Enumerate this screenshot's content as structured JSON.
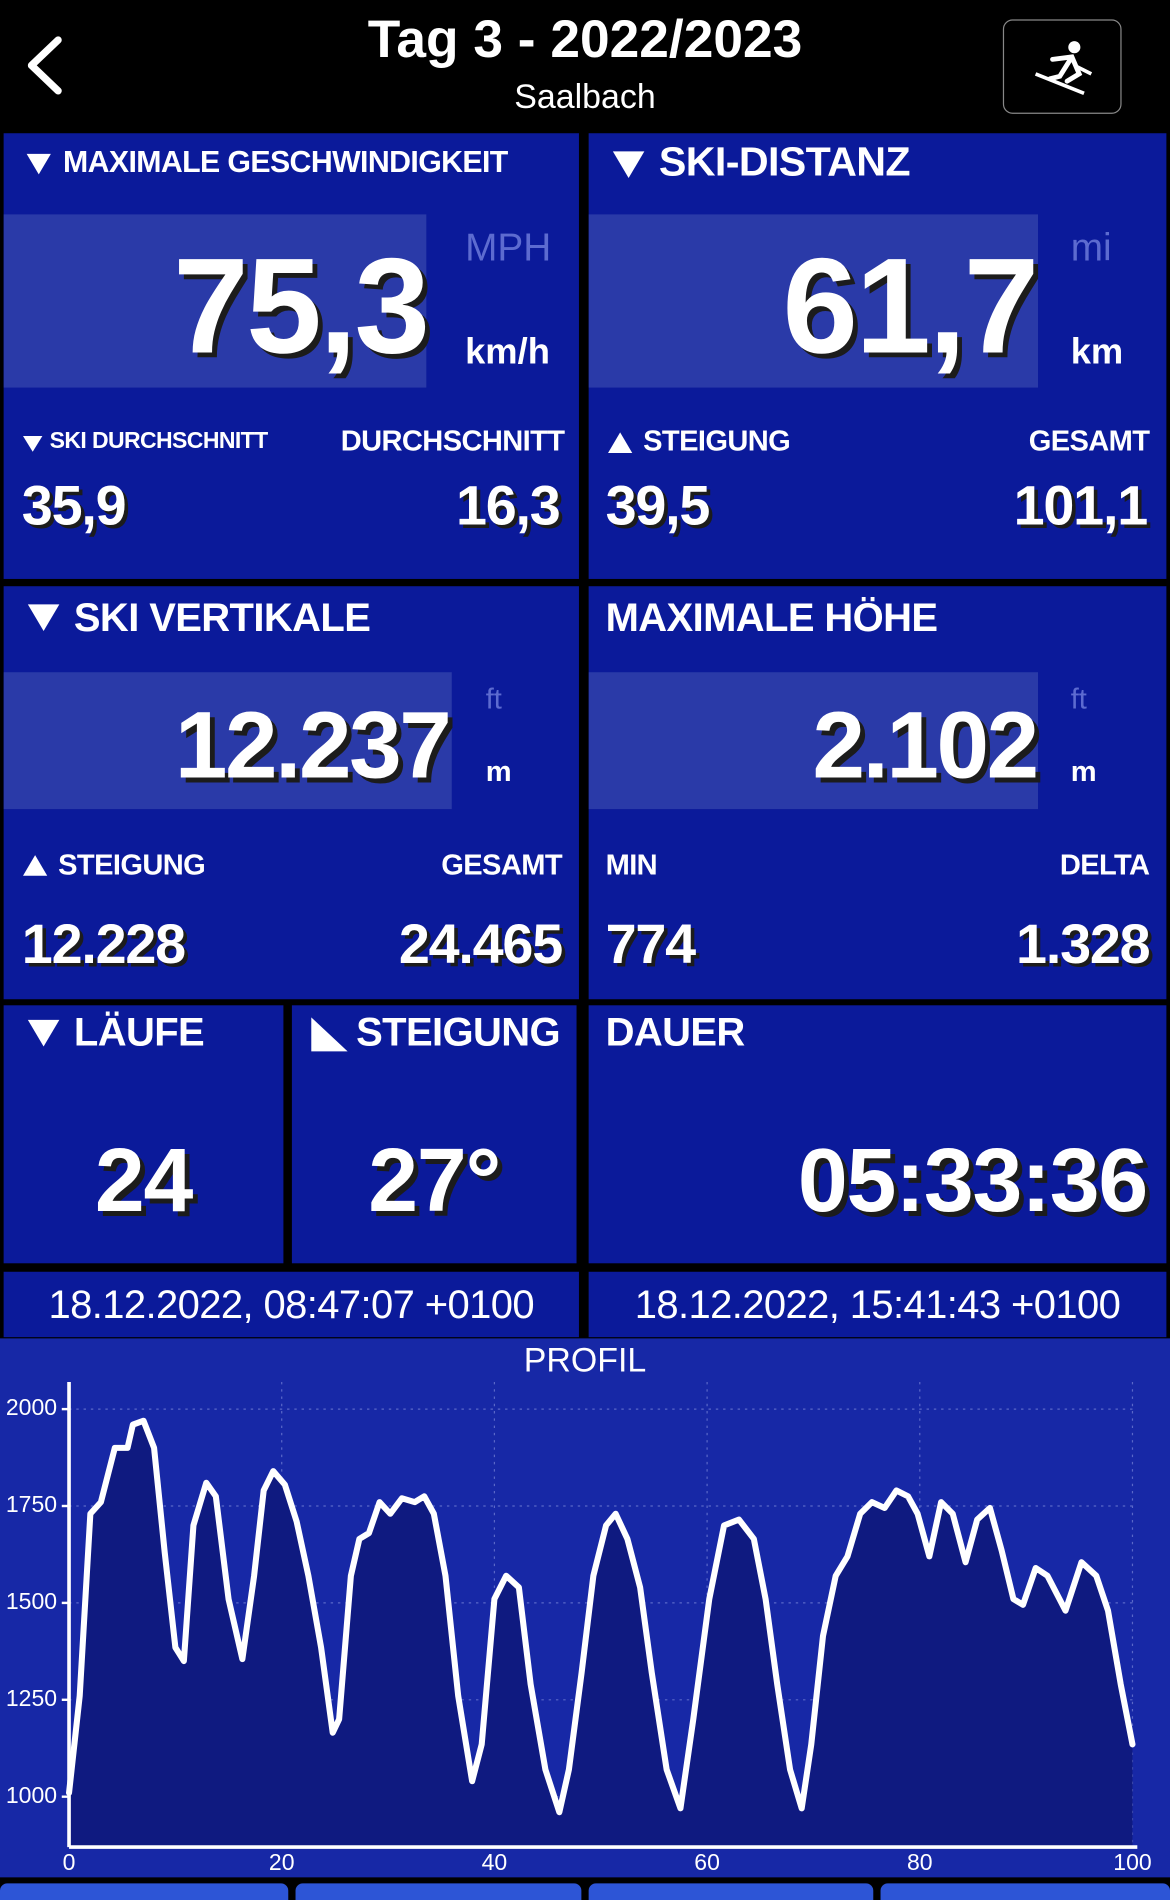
{
  "header": {
    "title": "Tag 3 - 2022/2023",
    "subtitle": "Saalbach"
  },
  "tiles": [
    {
      "label": "MAXIMALE GESCHWINDIGKEIT",
      "value": "75,3",
      "unit_alt": "MPH",
      "unit": "km/h",
      "stat_left_label": "SKI DURCHSCHNITT",
      "stat_right_label": "DURCHSCHNITT",
      "stat_left": "35,9",
      "stat_right": "16,3"
    },
    {
      "label": "SKI-DISTANZ",
      "value": "61,7",
      "unit_alt": "mi",
      "unit": "km",
      "stat_left_label": "STEIGUNG",
      "stat_right_label": "GESAMT",
      "stat_left": "39,5",
      "stat_right": "101,1"
    },
    {
      "label": "SKI VERTIKALE",
      "value": "12.237",
      "unit_alt": "ft",
      "unit": "m",
      "stat_left_label": "STEIGUNG",
      "stat_right_label": "GESAMT",
      "stat_left": "12.228",
      "stat_right": "24.465"
    },
    {
      "label": "MAXIMALE HÖHE",
      "value": "2.102",
      "unit_alt": "ft",
      "unit": "m",
      "stat_left_label": "MIN",
      "stat_right_label": "DELTA",
      "stat_left": "774",
      "stat_right": "1.328"
    }
  ],
  "counters": [
    {
      "label": "LÄUFE",
      "value": "24"
    },
    {
      "label": "STEIGUNG",
      "value": "27°"
    },
    {
      "label": "DAUER",
      "value": "05:33:36"
    }
  ],
  "times": {
    "start": "18.12.2022, 08:47:07 +0100",
    "end": "18.12.2022, 15:41:43 +0100"
  },
  "profile": {
    "type": "line",
    "title": "PROFIL",
    "color": "#ffffff",
    "grid": true,
    "x": [
      0,
      1,
      2,
      3,
      4.3,
      5.5,
      6,
      7,
      8,
      9,
      10,
      10.8,
      11.7,
      12.9,
      13.8,
      15,
      16.3,
      17.4,
      18.3,
      19.2,
      20.3,
      21.4,
      22.5,
      23.7,
      24.8,
      25.4,
      26.5,
      27.3,
      28.2,
      29.2,
      30.2,
      31.3,
      32.5,
      33.4,
      34.3,
      35.4,
      36.6,
      37.9,
      38.8,
      40,
      41.1,
      42.3,
      43.4,
      44.8,
      46.1,
      47,
      48.2,
      49.3,
      50.5,
      51.4,
      52.5,
      53.7,
      54.8,
      56.2,
      57.5,
      58.7,
      60.2,
      61.6,
      63,
      64.4,
      65.5,
      66.6,
      67.8,
      68.9,
      69.8,
      70.9,
      72.1,
      73.2,
      74.4,
      75.5,
      76.7,
      77.8,
      78.9,
      79.8,
      80.9,
      82,
      83.1,
      84.3,
      85.4,
      86.6,
      87.7,
      88.8,
      89.7,
      90.9,
      92,
      93.7,
      95.2,
      96.6,
      97.7,
      98.9,
      100
    ],
    "values": [
      1010,
      1260,
      1730,
      1760,
      1900,
      1900,
      1960,
      1970,
      1900,
      1630,
      1385,
      1350,
      1700,
      1810,
      1775,
      1510,
      1355,
      1570,
      1790,
      1840,
      1805,
      1710,
      1570,
      1385,
      1165,
      1200,
      1570,
      1665,
      1680,
      1760,
      1730,
      1770,
      1760,
      1775,
      1730,
      1570,
      1260,
      1040,
      1135,
      1510,
      1570,
      1540,
      1290,
      1070,
      960,
      1070,
      1320,
      1570,
      1700,
      1730,
      1665,
      1540,
      1320,
      1070,
      970,
      1200,
      1510,
      1700,
      1715,
      1665,
      1510,
      1290,
      1070,
      970,
      1135,
      1415,
      1570,
      1620,
      1730,
      1760,
      1745,
      1790,
      1775,
      1730,
      1620,
      1760,
      1730,
      1605,
      1715,
      1745,
      1635,
      1510,
      1495,
      1590,
      1570,
      1480,
      1605,
      1570,
      1480,
      1290,
      1135
    ],
    "xlim": [
      0,
      100
    ],
    "xticks": [
      0,
      20,
      40,
      60,
      80,
      100
    ],
    "ylim": [
      870,
      2070
    ],
    "yticks": [
      1000,
      1250,
      1500,
      1750,
      2000
    ]
  }
}
